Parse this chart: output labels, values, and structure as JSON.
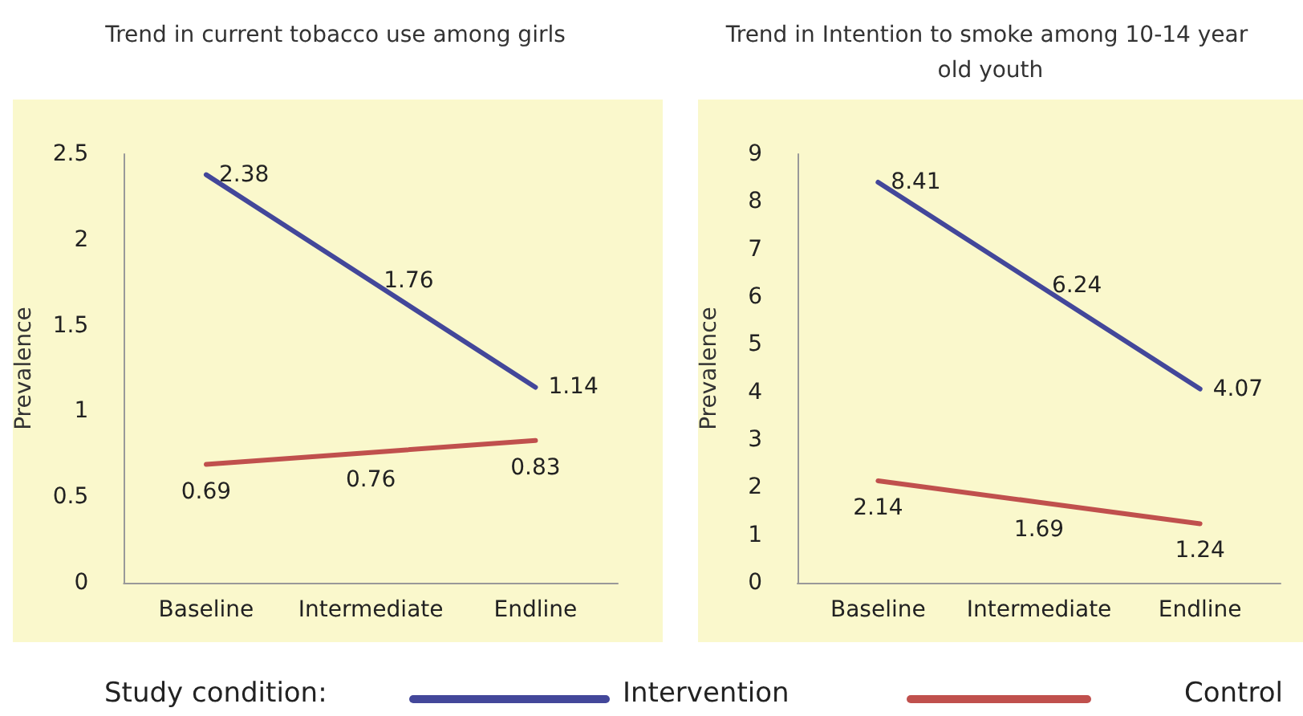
{
  "chart_data": [
    {
      "type": "line",
      "title": "Trend in current tobacco use among girls",
      "ylabel": "Prevalence",
      "categories": [
        "Baseline",
        "Intermediate",
        "Endline"
      ],
      "series": [
        {
          "name": "Intervention",
          "color": "#43479a",
          "values": [
            2.38,
            1.76,
            1.14
          ]
        },
        {
          "name": "Control",
          "color": "#c0504d",
          "values": [
            0.69,
            0.76,
            0.83
          ]
        }
      ],
      "ylim": [
        0,
        2.5
      ],
      "yticks": [
        0,
        0.5,
        1,
        1.5,
        2,
        2.5
      ],
      "grid": false,
      "data_labels": true,
      "marker": "none",
      "line_style": "solid",
      "legend": "bottom",
      "legend_title": "Study condition:"
    },
    {
      "type": "line",
      "title": "Trend in Intention to smoke among 10-14 year old youth",
      "ylabel": "Prevalence",
      "categories": [
        "Baseline",
        "Intermediate",
        "Endline"
      ],
      "series": [
        {
          "color": "#43479a",
          "values": [
            8.41,
            6.24,
            4.07
          ]
        },
        {
          "color": "#c0504d",
          "values": [
            2.14,
            1.69,
            1.24
          ]
        }
      ],
      "ylim": [
        0,
        9
      ],
      "yticks": [
        0,
        1,
        2,
        3,
        4,
        5,
        6,
        7,
        8,
        9
      ],
      "grid": false,
      "data_labels": true,
      "marker": "none",
      "line_style": "solid"
    }
  ]
}
